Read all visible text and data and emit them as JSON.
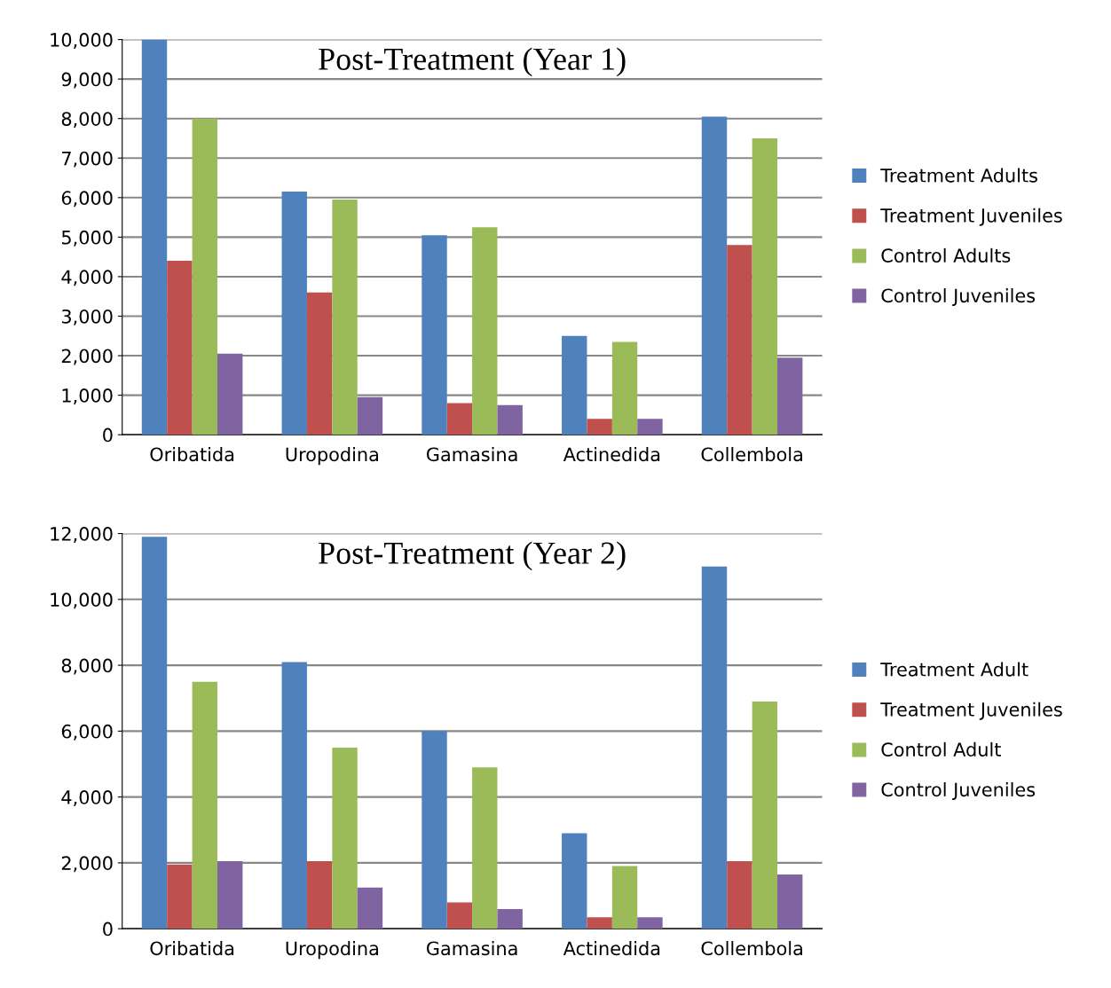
{
  "chart_data": [
    {
      "type": "bar",
      "title": "Post-Treatment (Year 1)",
      "categories": [
        "Oribatida",
        "Uropodina",
        "Gamasina",
        "Actinedida",
        "Collembola"
      ],
      "series": [
        {
          "name": "Treatment Adults",
          "color": "#4f81bd",
          "values": [
            10000,
            6150,
            5050,
            2500,
            8050
          ]
        },
        {
          "name": "Treatment Juveniles",
          "color": "#c0504d",
          "values": [
            4400,
            3600,
            800,
            400,
            4800
          ]
        },
        {
          "name": "Control Adults",
          "color": "#9bbb59",
          "values": [
            8000,
            5950,
            5250,
            2350,
            7500
          ]
        },
        {
          "name": "Control Juveniles",
          "color": "#8064a2",
          "values": [
            2050,
            950,
            750,
            400,
            1950
          ]
        }
      ],
      "ylim": [
        0,
        10000
      ],
      "yticks": [
        {
          "value": 0,
          "label": "0"
        },
        {
          "value": 1000,
          "label": "1,000"
        },
        {
          "value": 2000,
          "label": "2,000"
        },
        {
          "value": 3000,
          "label": "3,000"
        },
        {
          "value": 4000,
          "label": "4,000"
        },
        {
          "value": 5000,
          "label": "5,000"
        },
        {
          "value": 6000,
          "label": "6,000"
        },
        {
          "value": 7000,
          "label": "7,000"
        },
        {
          "value": 8000,
          "label": "8,000"
        },
        {
          "value": 9000,
          "label": "9,000"
        },
        {
          "value": 10000,
          "label": "10,000"
        }
      ],
      "grid": "y",
      "legend": "right"
    },
    {
      "type": "bar",
      "title": "Post-Treatment (Year 2)",
      "categories": [
        "Oribatida",
        "Uropodina",
        "Gamasina",
        "Actinedida",
        "Collembola"
      ],
      "series": [
        {
          "name": "Treatment Adult",
          "color": "#4f81bd",
          "values": [
            11900,
            8100,
            6000,
            2900,
            11000
          ]
        },
        {
          "name": "Treatment Juveniles",
          "color": "#c0504d",
          "values": [
            1950,
            2050,
            800,
            350,
            2050
          ]
        },
        {
          "name": "Control Adult",
          "color": "#9bbb59",
          "values": [
            7500,
            5500,
            4900,
            1900,
            6900
          ]
        },
        {
          "name": "Control Juveniles",
          "color": "#8064a2",
          "values": [
            2050,
            1250,
            600,
            350,
            1650
          ]
        }
      ],
      "ylim": [
        0,
        12000
      ],
      "yticks": [
        {
          "value": 0,
          "label": "0"
        },
        {
          "value": 2000,
          "label": "2,000"
        },
        {
          "value": 4000,
          "label": "4,000"
        },
        {
          "value": 6000,
          "label": "6,000"
        },
        {
          "value": 8000,
          "label": "8,000"
        },
        {
          "value": 10000,
          "label": "10,000"
        },
        {
          "value": 12000,
          "label": "12,000"
        }
      ],
      "grid": "y",
      "legend": "right"
    }
  ]
}
